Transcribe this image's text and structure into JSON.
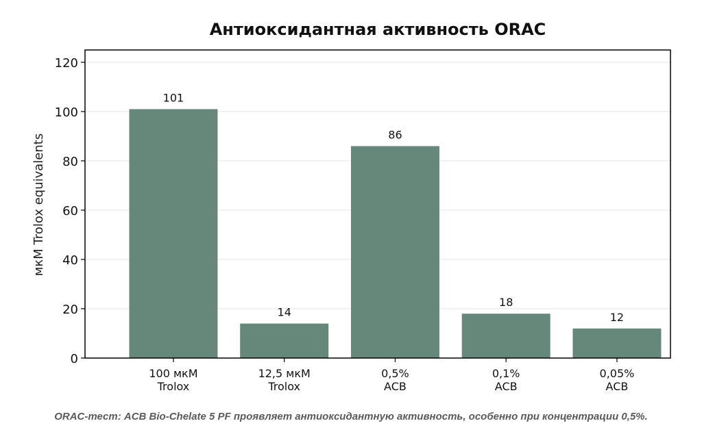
{
  "chart_data": {
    "type": "bar",
    "title": "Антиоксидантная активность ORAC",
    "ylabel": "мкМ Trolox equivalents",
    "xlabel": "",
    "ylim": [
      0,
      125
    ],
    "yticks": [
      0,
      20,
      40,
      60,
      80,
      100,
      120
    ],
    "grid": true,
    "categories": [
      [
        "100 мкМ",
        "Trolox"
      ],
      [
        "12,5 мкМ",
        "Trolox"
      ],
      [
        "0,5%",
        "ACB"
      ],
      [
        "0,1%",
        "ACB"
      ],
      [
        "0,05%",
        "ACB"
      ]
    ],
    "values": [
      101,
      14,
      86,
      18,
      12
    ],
    "data_labels": [
      "101",
      "14",
      "86",
      "18",
      "12"
    ],
    "bar_color": "#66887b"
  },
  "caption": "ORAC-тест: ACB Bio-Chelate 5 PF проявляет антиоксидантную активность, особенно при концентрации 0,5%."
}
